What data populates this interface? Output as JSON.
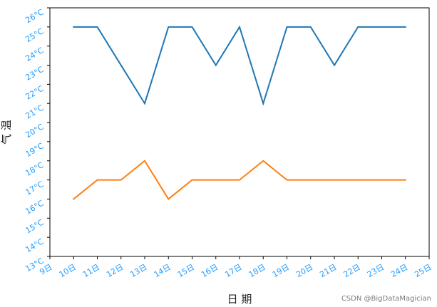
{
  "chart_data": {
    "type": "line",
    "title": "",
    "xlabel": "日 期",
    "ylabel": "气 温",
    "x_ticks": [
      "9日",
      "10日",
      "11日",
      "12日",
      "13日",
      "14日",
      "15日",
      "16日",
      "17日",
      "18日",
      "19日",
      "20日",
      "21日",
      "22日",
      "23日",
      "24日",
      "25日"
    ],
    "y_ticks": [
      "13°C",
      "14°C",
      "15°C",
      "16°C",
      "17°C",
      "18°C",
      "19°C",
      "20°C",
      "21°C",
      "22°C",
      "23°C",
      "24°C",
      "25°C",
      "26°C"
    ],
    "xlim": [
      9,
      25
    ],
    "ylim": [
      13,
      26
    ],
    "x": [
      10,
      11,
      12,
      13,
      14,
      15,
      16,
      17,
      18,
      19,
      20,
      21,
      22,
      23,
      24
    ],
    "series": [
      {
        "values": [
          25,
          25,
          23,
          21,
          25,
          25,
          23,
          25,
          21,
          25,
          25,
          23,
          25,
          25,
          25
        ],
        "color": "#1f77b4"
      },
      {
        "values": [
          16,
          17,
          17,
          18,
          16,
          17,
          17,
          17,
          18,
          17,
          17,
          17,
          17,
          17,
          17
        ],
        "color": "#ff7f0e"
      }
    ],
    "grid": false,
    "legend": "none"
  },
  "watermark": "CSDN @BigDataMagician"
}
